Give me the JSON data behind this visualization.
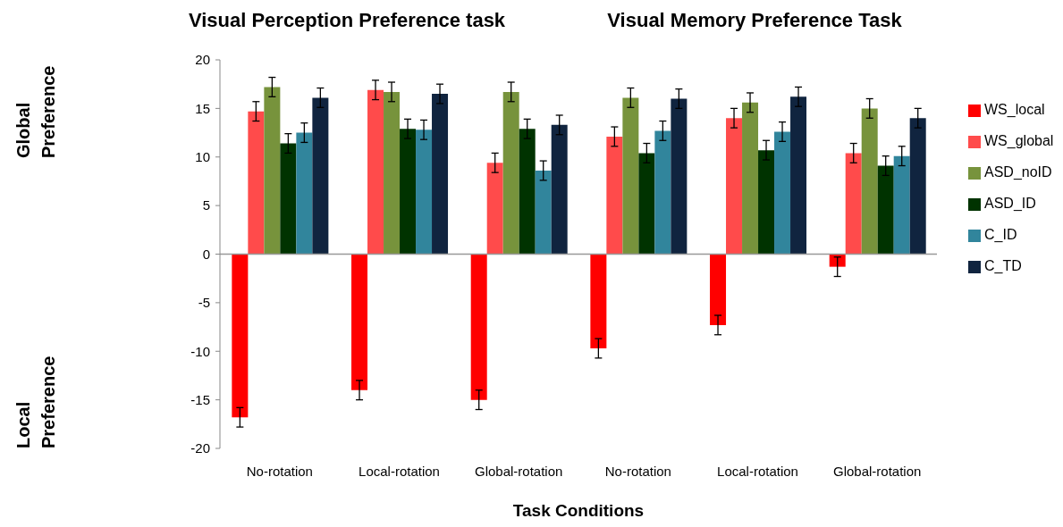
{
  "chart_data": {
    "type": "bar",
    "categories": [
      "No-rotation",
      "Local-rotation",
      "Global-rotation",
      "No-rotation",
      "Local-rotation",
      "Global-rotation"
    ],
    "series": [
      {
        "name": "WS_local",
        "color": "#ff0000",
        "values": [
          -16.8,
          -14.0,
          -15.0,
          -9.7,
          -7.3,
          -1.3
        ],
        "errors": [
          1,
          1,
          1,
          1,
          1,
          1
        ]
      },
      {
        "name": "WS_global",
        "color": "#ff4b4b",
        "values": [
          14.7,
          16.9,
          9.4,
          12.1,
          14.0,
          10.4
        ],
        "errors": [
          1,
          1,
          1,
          1,
          1,
          1
        ]
      },
      {
        "name": "ASD_noID",
        "color": "#77933c",
        "values": [
          17.2,
          16.7,
          16.7,
          16.1,
          15.6,
          15.0
        ],
        "errors": [
          1,
          1,
          1,
          1,
          1,
          1
        ]
      },
      {
        "name": "ASD_ID",
        "color": "#003300",
        "values": [
          11.4,
          12.9,
          12.9,
          10.4,
          10.7,
          9.1
        ],
        "errors": [
          1,
          1,
          1,
          1,
          1,
          1
        ]
      },
      {
        "name": "C_ID",
        "color": "#31859c",
        "values": [
          12.5,
          12.8,
          8.6,
          12.7,
          12.6,
          10.1
        ],
        "errors": [
          1,
          1,
          1,
          1,
          1,
          1
        ]
      },
      {
        "name": "C_TD",
        "color": "#10243f",
        "values": [
          16.1,
          16.5,
          13.3,
          16.0,
          16.2,
          14.0
        ],
        "errors": [
          1,
          1,
          1,
          1,
          1,
          1
        ]
      }
    ],
    "xlabel": "Task Conditions",
    "ylim": [
      -20,
      20
    ],
    "yticks": [
      -20,
      -15,
      -10,
      -5,
      0,
      5,
      10,
      15,
      20
    ],
    "legend": "right",
    "annotations": [
      "Visual Perception Preference task",
      "Visual Memory Preference Task",
      "Global Preference",
      "Local Preference"
    ]
  }
}
